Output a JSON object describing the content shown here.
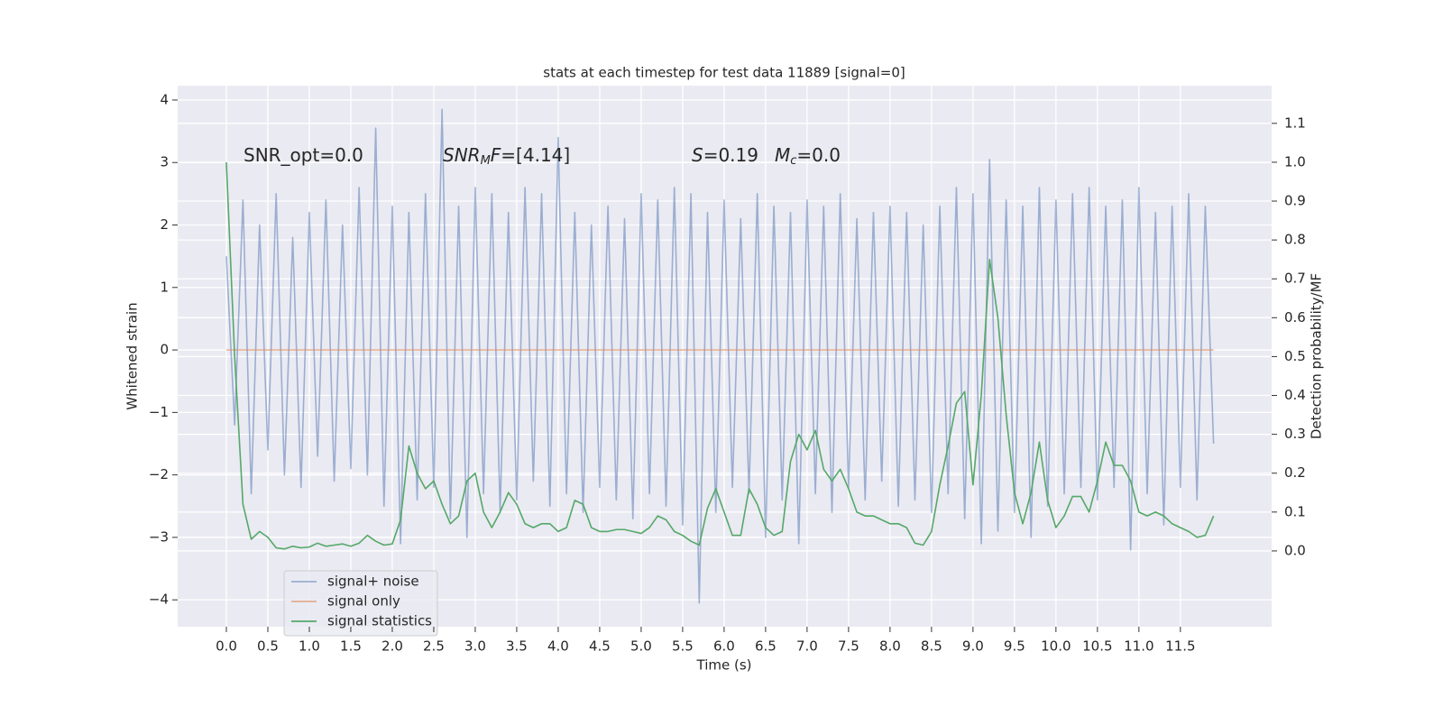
{
  "chart_data": {
    "type": "line",
    "title": "stats at each timestep for test data 11889 [signal=0]",
    "xlabel": "Time (s)",
    "ylabel": "Whitened strain",
    "y2label": "Detection probability/MF",
    "annotations": [
      [
        "SNR_opt=0.0"
      ],
      [
        "SNR",
        "M",
        "F",
        "=[4.14]"
      ],
      [
        "S",
        "=0.19",
        "M",
        "c",
        "=0.0"
      ]
    ],
    "x": [
      0,
      0.1,
      0.2,
      0.3,
      0.4,
      0.5,
      0.6,
      0.7,
      0.8,
      0.9,
      1,
      1.1,
      1.2,
      1.3,
      1.4,
      1.5,
      1.6,
      1.7,
      1.8,
      1.9,
      2,
      2.1,
      2.2,
      2.3,
      2.4,
      2.5,
      2.6,
      2.7,
      2.8,
      2.9,
      3,
      3.1,
      3.2,
      3.3,
      3.4,
      3.5,
      3.6,
      3.7,
      3.8,
      3.9,
      4,
      4.1,
      4.2,
      4.3,
      4.4,
      4.5,
      4.6,
      4.7,
      4.8,
      4.9,
      5,
      5.1,
      5.2,
      5.3,
      5.4,
      5.5,
      5.6,
      5.7,
      5.8,
      5.9,
      6,
      6.1,
      6.2,
      6.3,
      6.4,
      6.5,
      6.6,
      6.7,
      6.8,
      6.9,
      7,
      7.1,
      7.2,
      7.3,
      7.4,
      7.5,
      7.6,
      7.7,
      7.8,
      7.9,
      8,
      8.1,
      8.2,
      8.3,
      8.4,
      8.5,
      8.6,
      8.7,
      8.8,
      8.9,
      9,
      9.1,
      9.2,
      9.3,
      9.4,
      9.5,
      9.6,
      9.7,
      9.8,
      9.9,
      10,
      10.1,
      10.2,
      10.3,
      10.4,
      10.5,
      10.6,
      10.7,
      10.8,
      10.9,
      11,
      11.1,
      11.2,
      11.3,
      11.4,
      11.5,
      11.6,
      11.7,
      11.8,
      11.9
    ],
    "series": [
      {
        "name": "signal+ noise",
        "color": "#4c72b0",
        "opacity": 0.5,
        "values": [
          1.5,
          -1.2,
          2.4,
          -2.3,
          2.0,
          -1.6,
          2.5,
          -2.0,
          1.8,
          -2.2,
          2.2,
          -1.7,
          2.4,
          -2.1,
          2.0,
          -1.9,
          2.6,
          -2.0,
          3.55,
          -2.5,
          2.3,
          -3.1,
          2.2,
          -2.4,
          2.5,
          -2.2,
          3.85,
          -2.7,
          2.3,
          -3.0,
          2.6,
          -2.3,
          2.5,
          -2.6,
          2.2,
          -2.4,
          2.6,
          -2.1,
          2.5,
          -2.5,
          3.4,
          -2.3,
          2.2,
          -2.6,
          2.0,
          -2.2,
          2.3,
          -2.4,
          2.1,
          -2.7,
          2.5,
          -2.3,
          2.4,
          -2.5,
          2.6,
          -2.8,
          2.5,
          -4.05,
          2.2,
          -2.6,
          2.4,
          -2.2,
          2.1,
          -2.3,
          2.5,
          -3.0,
          2.3,
          -2.4,
          2.2,
          -3.1,
          2.4,
          -2.3,
          2.3,
          -2.6,
          2.5,
          -2.2,
          2.1,
          -2.4,
          2.2,
          -2.1,
          2.3,
          -2.5,
          2.2,
          -2.4,
          2.0,
          -2.6,
          2.3,
          -2.3,
          2.6,
          -2.7,
          2.5,
          -3.1,
          3.05,
          -2.9,
          2.4,
          -2.6,
          2.3,
          -3.0,
          2.6,
          -2.5,
          2.4,
          -2.3,
          2.5,
          -2.2,
          2.6,
          -2.4,
          2.3,
          -2.2,
          2.4,
          -3.2,
          2.6,
          -2.3,
          2.2,
          -2.8,
          2.3,
          -2.2,
          2.5,
          -2.4,
          2.3,
          -1.5
        ]
      },
      {
        "name": "signal only",
        "color": "#dd8452",
        "opacity": 0.6,
        "values": [
          0,
          0,
          0,
          0,
          0,
          0,
          0,
          0,
          0,
          0,
          0,
          0,
          0,
          0,
          0,
          0,
          0,
          0,
          0,
          0,
          0,
          0,
          0,
          0,
          0,
          0,
          0,
          0,
          0,
          0,
          0,
          0,
          0,
          0,
          0,
          0,
          0,
          0,
          0,
          0,
          0,
          0,
          0,
          0,
          0,
          0,
          0,
          0,
          0,
          0,
          0,
          0,
          0,
          0,
          0,
          0,
          0,
          0,
          0,
          0,
          0,
          0,
          0,
          0,
          0,
          0,
          0,
          0,
          0,
          0,
          0,
          0,
          0,
          0,
          0,
          0,
          0,
          0,
          0,
          0,
          0,
          0,
          0,
          0,
          0,
          0,
          0,
          0,
          0,
          0,
          0,
          0,
          0,
          0,
          0,
          0,
          0,
          0,
          0,
          0,
          0,
          0,
          0,
          0,
          0,
          0,
          0,
          0,
          0,
          0,
          0,
          0,
          0,
          0,
          0,
          0,
          0,
          0,
          0,
          0
        ]
      },
      {
        "name": "signal statistics",
        "color": "#55a868",
        "opacity": 1,
        "axis": "y2",
        "values": [
          1.0,
          0.5,
          0.12,
          0.03,
          0.05,
          0.035,
          0.008,
          0.005,
          0.012,
          0.008,
          0.01,
          0.02,
          0.012,
          0.015,
          0.018,
          0.012,
          0.02,
          0.04,
          0.025,
          0.015,
          0.018,
          0.08,
          0.27,
          0.2,
          0.16,
          0.18,
          0.12,
          0.07,
          0.09,
          0.18,
          0.2,
          0.1,
          0.06,
          0.1,
          0.15,
          0.12,
          0.07,
          0.06,
          0.07,
          0.07,
          0.05,
          0.06,
          0.13,
          0.12,
          0.06,
          0.05,
          0.05,
          0.055,
          0.055,
          0.05,
          0.045,
          0.06,
          0.09,
          0.08,
          0.05,
          0.04,
          0.025,
          0.015,
          0.11,
          0.16,
          0.1,
          0.04,
          0.04,
          0.16,
          0.12,
          0.06,
          0.04,
          0.05,
          0.23,
          0.3,
          0.26,
          0.31,
          0.21,
          0.18,
          0.21,
          0.16,
          0.1,
          0.09,
          0.09,
          0.08,
          0.07,
          0.07,
          0.06,
          0.02,
          0.015,
          0.05,
          0.17,
          0.27,
          0.38,
          0.41,
          0.17,
          0.4,
          0.75,
          0.6,
          0.35,
          0.15,
          0.07,
          0.15,
          0.28,
          0.13,
          0.06,
          0.09,
          0.14,
          0.14,
          0.1,
          0.18,
          0.28,
          0.22,
          0.22,
          0.18,
          0.1,
          0.09,
          0.1,
          0.09,
          0.07,
          0.06,
          0.05,
          0.035,
          0.04,
          0.09
        ]
      }
    ],
    "xlim": [
      -0.587,
      12.6
    ],
    "xticks": [
      {
        "value": 0,
        "label": "0.0"
      },
      0.5,
      {
        "value": 1,
        "label": "1.0"
      },
      1.5,
      {
        "value": 2,
        "label": "2.0"
      },
      2.5,
      {
        "value": 3,
        "label": "3.0"
      },
      3.5,
      {
        "value": 4,
        "label": "4.0"
      },
      4.5,
      {
        "value": 5,
        "label": "5.0"
      },
      5.5,
      {
        "value": 6,
        "label": "6.0"
      },
      6.5,
      {
        "value": 7,
        "label": "7.0"
      },
      7.5,
      {
        "value": 8,
        "label": "8.0"
      },
      8.5,
      {
        "value": 9,
        "label": "9.0"
      },
      9.5,
      {
        "value": 10,
        "label": "10.0"
      },
      10.5,
      {
        "value": 11,
        "label": "11.0"
      },
      11.5
    ],
    "ylim": [
      -4.43,
      4.23
    ],
    "yticks": [
      {
        "value": -4,
        "label": "−4"
      },
      {
        "value": -3,
        "label": "−3"
      },
      {
        "value": -2,
        "label": "−2"
      },
      {
        "value": -1,
        "label": "−1"
      },
      0,
      1,
      2,
      3,
      4
    ],
    "y2lim": [
      -0.195,
      1.197
    ],
    "y2ticks": [
      {
        "value": 0,
        "label": "0.0"
      },
      0.1,
      0.2,
      0.3,
      0.4,
      0.5,
      0.6,
      0.7,
      0.8,
      0.9,
      {
        "value": 1,
        "label": "1.0"
      },
      1.1
    ],
    "grid": true,
    "legend": "lower left"
  }
}
